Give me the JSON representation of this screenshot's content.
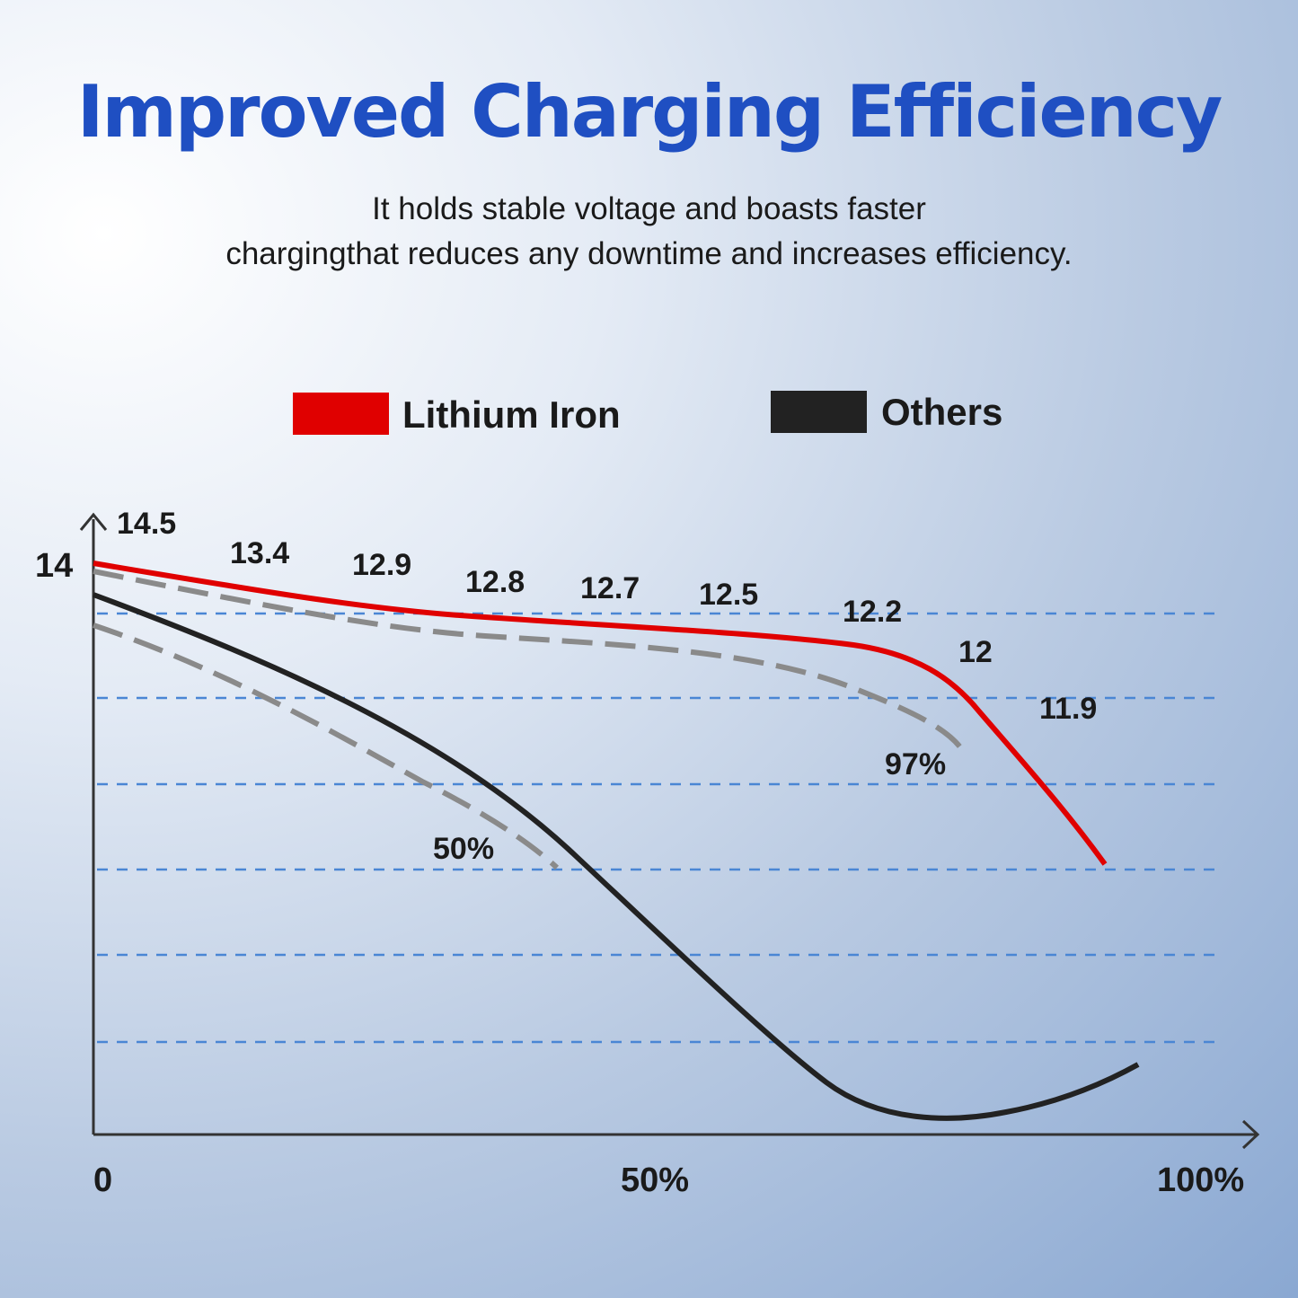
{
  "header": {
    "title": "Improved Charging Efficiency",
    "subtitle_line1": "It holds stable voltage and boasts faster",
    "subtitle_line2": "chargingthat reduces any downtime and increases efficiency."
  },
  "colors": {
    "title": "#1f4fc2",
    "lithium": "#e00000",
    "others": "#222222",
    "reference": "#8a8a8a",
    "grid": "#4a86d4"
  },
  "chart_data": {
    "type": "line",
    "legend": {
      "placement": "top",
      "entries": [
        "Lithium Iron",
        "Others"
      ]
    },
    "y_axis": {
      "tick_labels": [
        "14"
      ],
      "grid": "dashed"
    },
    "x_axis": {
      "tick_labels": [
        "0",
        "50%",
        "100%"
      ]
    },
    "series": [
      {
        "name": "Lithium Iron",
        "color": "#e00000",
        "data_labels": [
          "14.5",
          "13.4",
          "12.9",
          "12.8",
          "12.7",
          "12.5",
          "12.2",
          "12",
          "11.9"
        ],
        "end_label": "97%"
      },
      {
        "name": "Others",
        "color": "#222222",
        "end_label": "50%"
      }
    ]
  }
}
